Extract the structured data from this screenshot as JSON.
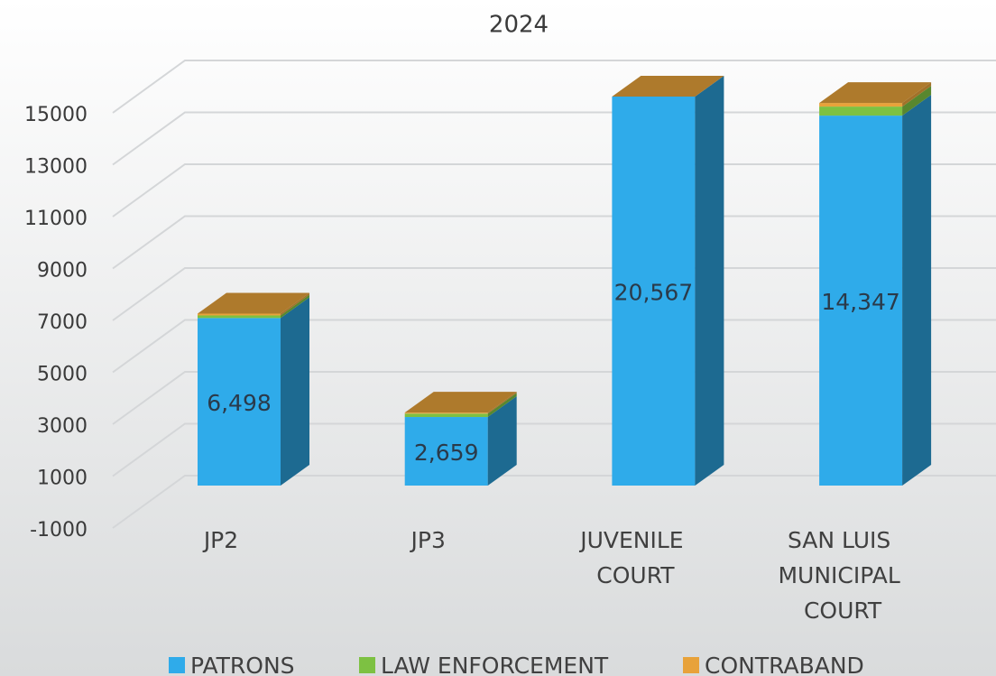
{
  "chart_data": {
    "type": "bar3d_stacked",
    "title": "2024",
    "categories": [
      "JP2",
      "JP3",
      "JUVENILE COURT",
      "SAN LUIS MUNICIPAL COURT"
    ],
    "series": [
      {
        "name": "PATRONS",
        "color": "#2fabea",
        "values": [
          6498,
          2659,
          20567,
          14347
        ],
        "value_labels": [
          "6,498",
          "2,659",
          "20,567",
          "14,347"
        ]
      },
      {
        "name": "LAW ENFORCEMENT",
        "color": "#7dc142",
        "values": [
          100,
          130,
          20,
          350
        ]
      },
      {
        "name": "CONTRABAND",
        "color": "#e8a23a",
        "values": [
          70,
          40,
          20,
          140
        ]
      }
    ],
    "ylim": [
      -1000,
      15000
    ],
    "yticks": [
      -1000,
      1000,
      3000,
      5000,
      7000,
      9000,
      11000,
      13000,
      15000
    ],
    "grid": true
  }
}
